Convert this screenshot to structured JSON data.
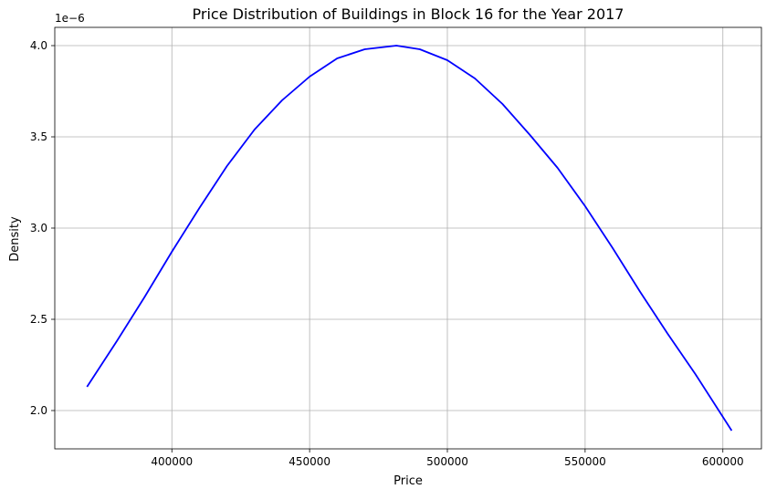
{
  "chart_data": {
    "type": "line",
    "title": "Price Distribution of Buildings in Block 16 for the Year 2017",
    "xlabel": "Price",
    "ylabel": "Density",
    "y_offset_label": "1e−6",
    "xlim": [
      357500,
      614000
    ],
    "ylim": [
      1.79,
      4.1
    ],
    "y_scale_exponent": -6,
    "grid": true,
    "xticks": [
      400000,
      450000,
      500000,
      550000,
      600000
    ],
    "xtick_labels": [
      "400000",
      "450000",
      "500000",
      "550000",
      "600000"
    ],
    "yticks": [
      2.0,
      2.5,
      3.0,
      3.5,
      4.0
    ],
    "ytick_labels": [
      "2.0",
      "2.5",
      "3.0",
      "3.5",
      "4.0"
    ],
    "series": [
      {
        "color": "#0000ff",
        "x": [
          369200,
          380000,
          390000,
          400000,
          410000,
          420000,
          430000,
          440000,
          450000,
          460000,
          470000,
          481500,
          490000,
          500000,
          510000,
          520000,
          530000,
          540000,
          550000,
          560000,
          570000,
          580000,
          590000,
          603200
        ],
        "y": [
          2.13,
          2.38,
          2.62,
          2.87,
          3.11,
          3.34,
          3.54,
          3.7,
          3.83,
          3.93,
          3.98,
          4.0,
          3.98,
          3.92,
          3.82,
          3.68,
          3.51,
          3.33,
          3.12,
          2.89,
          2.65,
          2.42,
          2.2,
          1.89
        ]
      }
    ]
  }
}
